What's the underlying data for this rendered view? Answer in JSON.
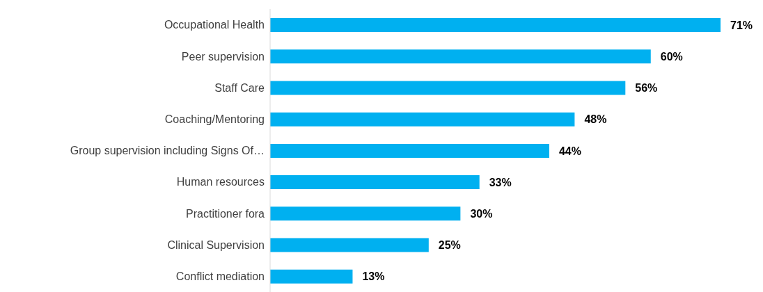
{
  "chart_data": {
    "type": "bar",
    "orientation": "horizontal",
    "categories": [
      "Occupational Health",
      "Peer supervision",
      "Staff Care",
      "Coaching/Mentoring",
      "Group supervision including Signs Of…",
      "Human resources",
      "Practitioner fora",
      "Clinical Supervision",
      "Conflict mediation"
    ],
    "values": [
      71,
      60,
      56,
      48,
      44,
      33,
      30,
      25,
      13
    ],
    "value_labels": [
      "71%",
      "60%",
      "56%",
      "48%",
      "44%",
      "33%",
      "30%",
      "25%",
      "13%"
    ],
    "color": "#00b0f0",
    "grid": false,
    "legend": false
  }
}
